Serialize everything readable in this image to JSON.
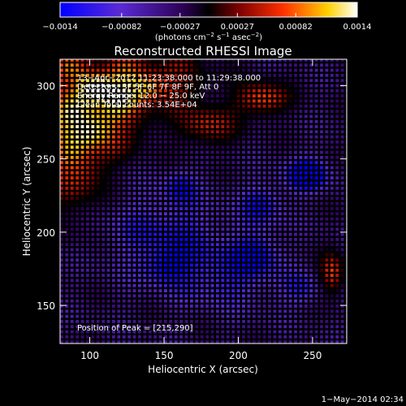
{
  "chart_data": {
    "type": "heatmap",
    "title": "Reconstructed RHESSI Image",
    "xlabel": "Heliocentric X (arcsec)",
    "ylabel": "Heliocentric Y (arcsec)",
    "xlim": [
      80,
      273
    ],
    "ylim": [
      124,
      318
    ],
    "x_ticks": [
      "100",
      "150",
      "200",
      "250"
    ],
    "x_tick_values": [
      100,
      150,
      200,
      250
    ],
    "y_ticks": [
      "150",
      "200",
      "250",
      "300"
    ],
    "y_tick_values": [
      150,
      200,
      250,
      300
    ],
    "colorbar": {
      "ticks": [
        "−0.0014",
        "−0.00082",
        "−0.00027",
        "0.00027",
        "0.00082",
        "0.0014"
      ],
      "tick_values": [
        -0.0014,
        -0.00082,
        -0.00027,
        0.00027,
        0.00082,
        0.0014
      ],
      "range": [
        -0.0014,
        0.0014
      ],
      "unit_parts": [
        "(photons cm",
        "−2",
        " s",
        "−1",
        " asec",
        "−2",
        ")"
      ]
    },
    "info_lines": [
      "13−Apr−2012 11:23:38.000 to 11:29:38.000",
      "Detectors: 3F 5F 6F 7F 8F 9F, Att 0",
      "Energy Range: 12.0 − 25.0 keV",
      "Clean    Total counts: 3.54E+04"
    ],
    "peak_text": "Position of Peak = [215,290]",
    "peak": [
      215,
      290
    ],
    "footer": "1−May−2014 02:34",
    "colors": {
      "background": "#000000",
      "foreground": "#ffffff",
      "colormap": [
        "#0000ff",
        "#5a2bd6",
        "#2a0050",
        "#000000",
        "#7a0000",
        "#ff3000",
        "#ffd000",
        "#ffffff"
      ]
    },
    "hotspots": [
      {
        "x": 215,
        "y": 290,
        "value": 0.0013,
        "sx": 12,
        "sy": 8
      },
      {
        "x": 178,
        "y": 272,
        "value": 0.001,
        "sx": 14,
        "sy": 10
      },
      {
        "x": 110,
        "y": 282,
        "value": 0.0011,
        "sx": 20,
        "sy": 20
      },
      {
        "x": 90,
        "y": 250,
        "value": 0.001,
        "sx": 14,
        "sy": 30
      },
      {
        "x": 140,
        "y": 300,
        "value": 0.0009,
        "sx": 25,
        "sy": 10
      },
      {
        "x": 262,
        "y": 170,
        "value": 0.0012,
        "sx": 6,
        "sy": 10
      },
      {
        "x": 245,
        "y": 238,
        "value": -0.0014,
        "sx": 10,
        "sy": 8
      },
      {
        "x": 150,
        "y": 198,
        "value": -0.0007,
        "sx": 30,
        "sy": 20
      },
      {
        "x": 190,
        "y": 168,
        "value": -0.0006,
        "sx": 25,
        "sy": 15
      },
      {
        "x": 212,
        "y": 185,
        "value": -0.0008,
        "sx": 10,
        "sy": 10
      },
      {
        "x": 215,
        "y": 218,
        "value": -0.0008,
        "sx": 10,
        "sy": 10
      },
      {
        "x": 150,
        "y": 175,
        "value": -0.0006,
        "sx": 10,
        "sy": 8
      },
      {
        "x": 242,
        "y": 160,
        "value": -0.0006,
        "sx": 10,
        "sy": 8
      },
      {
        "x": 160,
        "y": 230,
        "value": -0.0007,
        "sx": 8,
        "sy": 8
      }
    ]
  }
}
